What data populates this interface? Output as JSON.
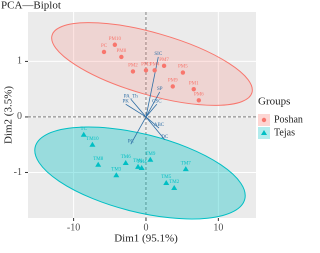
{
  "chart_data": {
    "type": "biplot",
    "title": "PCA—Biplot",
    "x_label": "Dim1 (95.1%)",
    "y_label": "Dim2 (3.5%)",
    "xlim": [
      -16.3,
      15.2
    ],
    "ylim": [
      -1.82,
      1.89
    ],
    "xticks": [
      -10,
      0,
      10
    ],
    "yticks": [
      -1,
      0,
      1
    ],
    "grid": true,
    "legend_title": "Groups",
    "legend_position": "right",
    "series": [
      {
        "name": "Poshan",
        "color": "#F8766D",
        "marker": "circle",
        "labels": [
          "PM10",
          "PC",
          "PM8",
          "PM2",
          "PM3",
          "PM4",
          "PM7",
          "PM9",
          "PM5",
          "PM1",
          "PM6"
        ],
        "x": [
          -4.3,
          -5.8,
          -3.4,
          -1.8,
          0,
          1.2,
          2.5,
          3.7,
          5.1,
          6.6,
          7.3
        ],
        "values": [
          1.3,
          1.17,
          1.08,
          0.82,
          0.84,
          0.84,
          0.92,
          0.55,
          0.8,
          0.5,
          0.3
        ]
      },
      {
        "name": "Tejas",
        "color": "#00BFC4",
        "marker": "triangle",
        "labels": [
          "TC",
          "TM10",
          "TM8",
          "TM6",
          "TM9",
          "TM3",
          "TM1",
          "TM4",
          "TM7",
          "TM5",
          "TM2"
        ],
        "x": [
          -8.6,
          -7.4,
          -6.6,
          -2.8,
          0.6,
          -4.1,
          -1.1,
          -0.6,
          5.5,
          2.8,
          3.9
        ],
        "values": [
          -0.32,
          -0.5,
          -0.86,
          -0.83,
          -0.77,
          -1.05,
          -0.9,
          -0.92,
          -0.94,
          -1.19,
          -1.28
        ]
      }
    ],
    "variables": {
      "color": "#2f6ea5",
      "labels": [
        "PA_Th",
        "PK",
        "SIC",
        "SP",
        "CSC",
        "ABC",
        "PC",
        "DC"
      ],
      "x": [
        -2.1,
        -2.8,
        1.7,
        1.9,
        1.5,
        1.8,
        -2.1,
        2.6
      ],
      "values": [
        0.32,
        0.23,
        1.08,
        0.45,
        0.23,
        -0.2,
        -0.49,
        -0.41
      ]
    }
  }
}
